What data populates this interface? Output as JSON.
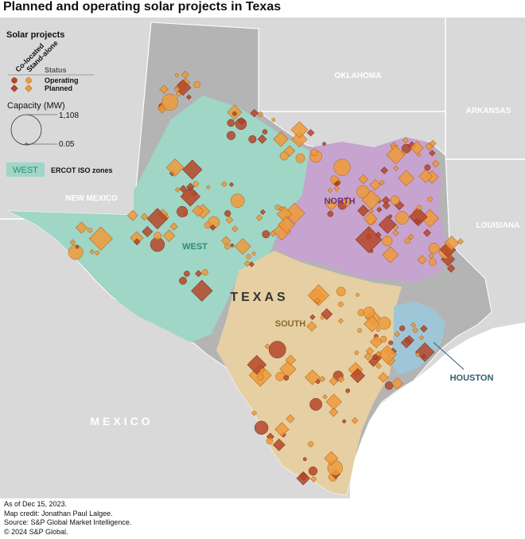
{
  "title": "Planned and operating solar projects in Texas",
  "legend": {
    "heading": "Solar projects",
    "col_colocated": "Co-located",
    "col_standalone": "Stand-alone",
    "status_label": "Status",
    "operating_label": "Operating",
    "planned_label": "Planned",
    "capacity_label": "Capacity (MW)",
    "capacity_max": "1,108",
    "capacity_min": "0.05",
    "zone_swatch_label": "WEST",
    "zone_label": "ERCOT ISO zones"
  },
  "map_labels": {
    "oklahoma": "OKLAHOMA",
    "arkansas": "ARKANSAS",
    "new_mexico": "NEW MEXICO",
    "louisiana": "LOUISIANA",
    "mexico": "MEXICO",
    "texas": "TEXAS",
    "zone_west": "WEST",
    "zone_north": "NORTH",
    "zone_south": "SOUTH",
    "zone_houston": "HOUSTON"
  },
  "colors": {
    "operating": "#b5462a",
    "planned": "#ef9a3a",
    "west_zone": "#9fd6c6",
    "north_zone": "#c7a3cf",
    "south_zone": "#e6cfa2",
    "houston_zone": "#9fc6d6",
    "outside_ercot": "#b4b4b4",
    "neighbor_states": "#d9d9d9",
    "water": "#ffffff"
  },
  "footer": {
    "line1": "As of Dec 15, 2023.",
    "line2": "Map credit: Jonathan Paul Lalgee.",
    "line3": "Source: S&P Global Market Intelligence.",
    "line4": "© 2024 S&P Global."
  }
}
